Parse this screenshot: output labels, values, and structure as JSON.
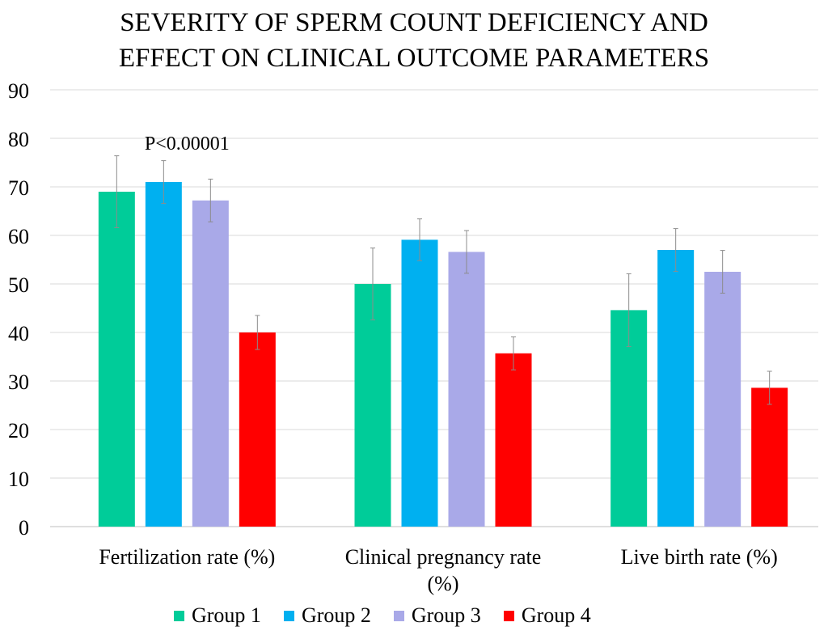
{
  "chart_data": {
    "type": "bar",
    "title": [
      "SEVERITY OF SPERM COUNT DEFICIENCY AND",
      "EFFECT ON  CLINICAL OUTCOME PARAMETERS"
    ],
    "categories": [
      "Fertilization rate (%)",
      "Clinical pregnancy rate (%)",
      "Live birth rate (%)"
    ],
    "series": [
      {
        "name": "Group 1",
        "color": "#00cc99",
        "values": [
          69,
          50,
          44.6
        ],
        "error": [
          7.4,
          7.4,
          7.5
        ]
      },
      {
        "name": "Group 2",
        "color": "#00b0f0",
        "values": [
          71,
          59.1,
          57
        ],
        "error": [
          4.4,
          4.3,
          4.4
        ]
      },
      {
        "name": "Group 3",
        "color": "#a9a9e8",
        "values": [
          67.2,
          56.6,
          52.5
        ],
        "error": [
          4.4,
          4.4,
          4.4
        ]
      },
      {
        "name": "Group 4",
        "color": "#ff0000",
        "values": [
          40,
          35.7,
          28.6
        ],
        "error": [
          3.5,
          3.4,
          3.4
        ]
      }
    ],
    "ylim": [
      0,
      90
    ],
    "yticks": [
      0,
      10,
      20,
      30,
      40,
      50,
      60,
      70,
      80,
      90
    ],
    "grid": true,
    "legend": "bottom",
    "annotations": [
      {
        "text": "P<0.00001",
        "category": 0
      }
    ],
    "xlabel": "",
    "ylabel": ""
  }
}
